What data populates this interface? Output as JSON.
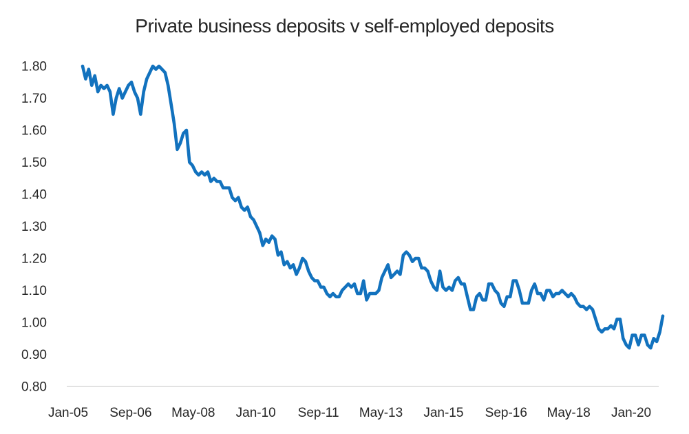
{
  "chart": {
    "title": "Private business deposits v self-employed deposits",
    "title_color": "#262626",
    "line_color": "#1272BE",
    "axis_line_color": "#D9D9D9",
    "tick_label_color": "#262626",
    "background": "#FFFFFF"
  },
  "chart_data": {
    "type": "line",
    "title": "Private business deposits v self-employed deposits",
    "xlabel": "",
    "ylabel": "",
    "legend": false,
    "grid": false,
    "ylim": [
      0.8,
      1.8
    ],
    "y_tick_step": 0.1,
    "y_tick_labels": [
      "1.80",
      "1.70",
      "1.60",
      "1.50",
      "1.40",
      "1.30",
      "1.20",
      "1.10",
      "1.00",
      "0.90",
      "0.80"
    ],
    "x_tick_labels": [
      "Jan-05",
      "Sep-06",
      "May-08",
      "Jan-10",
      "Sep-11",
      "May-13",
      "Jan-15",
      "Sep-16",
      "May-18",
      "Jan-20"
    ],
    "x_frequency": "monthly",
    "x_tick_interval_months": 20,
    "series": [
      {
        "name": "Private business deposits v self-employed deposits (ratio)",
        "values": [
          1.8,
          1.76,
          1.79,
          1.74,
          1.77,
          1.72,
          1.74,
          1.73,
          1.74,
          1.72,
          1.65,
          1.7,
          1.73,
          1.7,
          1.72,
          1.74,
          1.75,
          1.72,
          1.7,
          1.65,
          1.72,
          1.76,
          1.78,
          1.8,
          1.79,
          1.8,
          1.79,
          1.78,
          1.74,
          1.68,
          1.62,
          1.54,
          1.56,
          1.59,
          1.6,
          1.5,
          1.49,
          1.47,
          1.46,
          1.47,
          1.46,
          1.47,
          1.44,
          1.45,
          1.44,
          1.44,
          1.42,
          1.42,
          1.42,
          1.39,
          1.38,
          1.39,
          1.36,
          1.35,
          1.36,
          1.33,
          1.32,
          1.3,
          1.28,
          1.24,
          1.26,
          1.25,
          1.27,
          1.26,
          1.21,
          1.22,
          1.18,
          1.19,
          1.17,
          1.18,
          1.15,
          1.17,
          1.2,
          1.19,
          1.16,
          1.14,
          1.13,
          1.13,
          1.11,
          1.11,
          1.09,
          1.08,
          1.09,
          1.08,
          1.08,
          1.1,
          1.11,
          1.12,
          1.11,
          1.12,
          1.09,
          1.09,
          1.13,
          1.07,
          1.09,
          1.09,
          1.09,
          1.1,
          1.14,
          1.16,
          1.18,
          1.14,
          1.15,
          1.16,
          1.15,
          1.21,
          1.22,
          1.21,
          1.19,
          1.2,
          1.2,
          1.17,
          1.17,
          1.16,
          1.13,
          1.11,
          1.1,
          1.16,
          1.11,
          1.1,
          1.11,
          1.1,
          1.13,
          1.14,
          1.12,
          1.12,
          1.08,
          1.04,
          1.04,
          1.08,
          1.09,
          1.07,
          1.07,
          1.12,
          1.12,
          1.1,
          1.09,
          1.06,
          1.05,
          1.08,
          1.08,
          1.13,
          1.13,
          1.1,
          1.06,
          1.06,
          1.06,
          1.1,
          1.12,
          1.09,
          1.09,
          1.07,
          1.1,
          1.1,
          1.08,
          1.09,
          1.09,
          1.1,
          1.09,
          1.08,
          1.09,
          1.08,
          1.06,
          1.05,
          1.05,
          1.04,
          1.05,
          1.04,
          1.01,
          0.98,
          0.97,
          0.98,
          0.98,
          0.99,
          0.98,
          1.01,
          1.01,
          0.95,
          0.93,
          0.92,
          0.96,
          0.96,
          0.93,
          0.96,
          0.96,
          0.93,
          0.92,
          0.95,
          0.94,
          0.97,
          1.02
        ]
      }
    ]
  }
}
